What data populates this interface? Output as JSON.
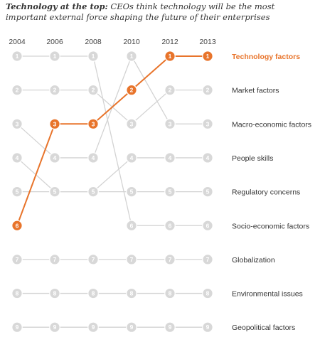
{
  "title": {
    "bold": "Technology at the top:",
    "rest": "CEOs think technology will be the most important external force shaping the future of their enterprises"
  },
  "colors": {
    "highlight": "#E8742B",
    "line": "#d3d3d3",
    "dot": "#d8d8d8"
  },
  "chart_data": {
    "type": "line",
    "chart_kind": "bump",
    "x": [
      "2004",
      "2006",
      "2008",
      "2010",
      "2012",
      "2013"
    ],
    "y_range": [
      1,
      9
    ],
    "highlighted_series": "Technology factors",
    "series": [
      {
        "name": "Technology factors",
        "ranks": [
          6,
          3,
          3,
          2,
          1,
          1
        ]
      },
      {
        "name": "Market factors",
        "ranks": [
          2,
          2,
          2,
          3,
          2,
          2
        ]
      },
      {
        "name": "Macro-economic factors",
        "ranks": [
          3,
          4,
          4,
          1,
          3,
          3
        ]
      },
      {
        "name": "People skills",
        "ranks": [
          4,
          5,
          5,
          4,
          4,
          4
        ]
      },
      {
        "name": "Regulatory concerns",
        "ranks": [
          5,
          5,
          5,
          5,
          5,
          5
        ]
      },
      {
        "name": "Socio-economic factors",
        "ranks": [
          1,
          1,
          1,
          6,
          6,
          6
        ]
      },
      {
        "name": "Globalization",
        "ranks": [
          7,
          7,
          7,
          7,
          7,
          7
        ]
      },
      {
        "name": "Environmental issues",
        "ranks": [
          8,
          8,
          8,
          8,
          8,
          8
        ]
      },
      {
        "name": "Geopolitical factors",
        "ranks": [
          9,
          9,
          9,
          9,
          9,
          9
        ]
      }
    ],
    "labels_in_final_rank_order": [
      "Technology factors",
      "Market factors",
      "Macro-economic factors",
      "People skills",
      "Regulatory concerns",
      "Socio-economic factors",
      "Globalization",
      "Environmental issues",
      "Geopolitical factors"
    ]
  }
}
